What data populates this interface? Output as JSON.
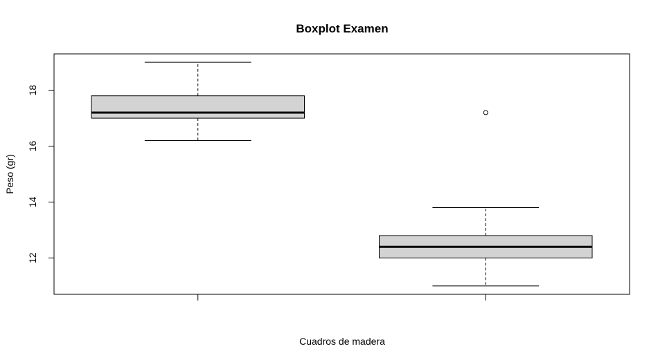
{
  "chart_data": {
    "type": "boxplot",
    "title": "Boxplot Examen",
    "xlabel": "Cuadros de madera",
    "ylabel": "Peso (gr)",
    "ylim": [
      10.7,
      19.3
    ],
    "yticks": [
      "12",
      "14",
      "16",
      "18"
    ],
    "series": [
      {
        "whisker_low": 16.2,
        "q1": 17.0,
        "median": 17.2,
        "q3": 17.8,
        "whisker_high": 19.0,
        "outliers": []
      },
      {
        "whisker_low": 11.0,
        "q1": 12.0,
        "median": 12.4,
        "q3": 12.8,
        "whisker_high": 13.8,
        "outliers": [
          17.2
        ]
      }
    ],
    "box_fill": "#d3d3d3",
    "line_color": "#000000"
  }
}
